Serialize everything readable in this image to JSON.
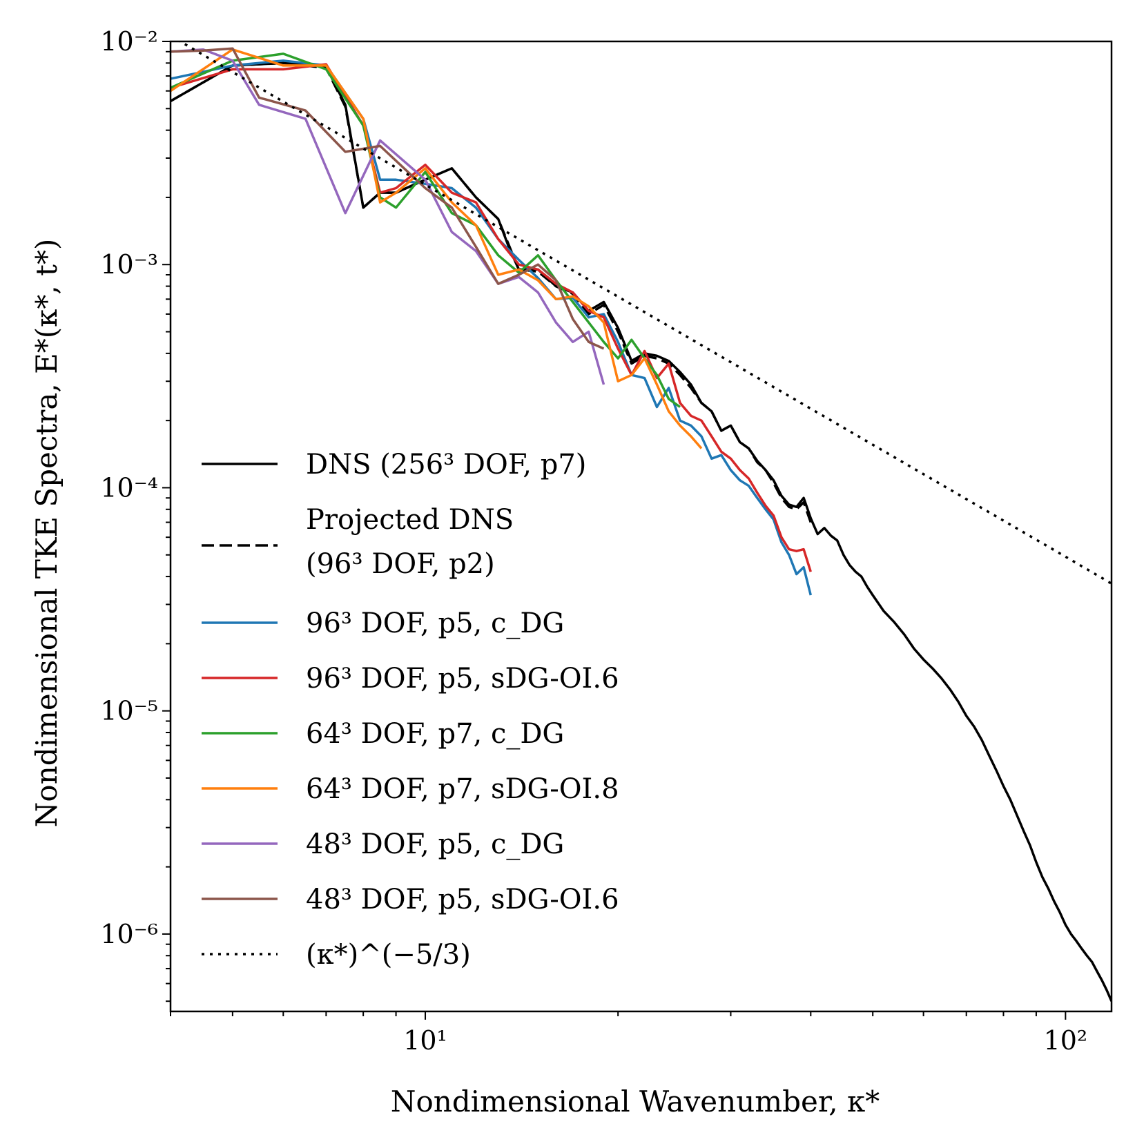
{
  "chart_data": {
    "type": "line",
    "x_scale": "log",
    "y_scale": "log",
    "xlim": [
      4,
      118
    ],
    "ylim": [
      4.5e-07,
      0.01
    ],
    "xlabel": "Nondimensional Wavenumber, κ*",
    "ylabel": "Nondimensional TKE Spectra, E*(κ*, t*)",
    "grid": false,
    "legend_position": "lower-left",
    "x_ticks": [
      {
        "value": 10,
        "label": "10¹"
      },
      {
        "value": 100,
        "label": "10²"
      }
    ],
    "y_ticks": [
      {
        "value": 1e-06,
        "label": "10⁻⁶"
      },
      {
        "value": 1e-05,
        "label": "10⁻⁵"
      },
      {
        "value": 0.0001,
        "label": "10⁻⁴"
      },
      {
        "value": 0.001,
        "label": "10⁻³"
      },
      {
        "value": 0.01,
        "label": "10⁻²"
      }
    ],
    "series": [
      {
        "name": "DNS (256³ DOF, p7)",
        "color": "#000000",
        "style": "solid",
        "x": [
          4,
          5,
          6,
          7,
          7.5,
          8,
          8.5,
          9,
          10,
          11,
          12,
          13,
          13.5,
          14,
          15,
          16,
          17,
          18,
          19,
          20,
          21,
          22,
          23,
          24,
          25,
          26,
          27,
          28,
          29,
          30,
          31,
          32,
          33,
          34,
          35,
          36,
          37,
          38,
          39,
          40,
          41,
          42,
          43,
          44,
          45,
          46,
          47,
          48,
          49,
          50,
          52,
          54,
          56,
          58,
          60,
          62,
          64,
          66,
          68,
          70,
          72,
          74,
          76,
          78,
          80,
          82,
          84,
          86,
          88,
          90,
          92,
          94,
          96,
          98,
          100,
          102,
          104,
          106,
          108,
          110,
          112,
          114,
          116,
          118
        ],
        "y": [
          0.0054,
          0.0078,
          0.008,
          0.0077,
          0.0052,
          0.0018,
          0.0021,
          0.0021,
          0.0024,
          0.0027,
          0.002,
          0.0016,
          0.0012,
          0.00095,
          0.00095,
          0.0008,
          0.00075,
          0.00062,
          0.00068,
          0.00052,
          0.00037,
          0.0004,
          0.00039,
          0.00037,
          0.00033,
          0.00029,
          0.00024,
          0.00022,
          0.00018,
          0.00019,
          0.00016,
          0.00015,
          0.000132,
          0.00012,
          0.000108,
          9.2e-05,
          8.4e-05,
          8.2e-05,
          9e-05,
          7.3e-05,
          6.2e-05,
          6.6e-05,
          6.1e-05,
          5.8e-05,
          5e-05,
          4.5e-05,
          4.2e-05,
          4e-05,
          3.6e-05,
          3.3e-05,
          2.8e-05,
          2.5e-05,
          2.2e-05,
          1.9e-05,
          1.7e-05,
          1.55e-05,
          1.4e-05,
          1.25e-05,
          1.1e-05,
          9.5e-06,
          8.5e-06,
          7.4e-06,
          6.3e-06,
          5.4e-06,
          4.6e-06,
          4e-06,
          3.4e-06,
          2.9e-06,
          2.5e-06,
          2.1e-06,
          1.8e-06,
          1.6e-06,
          1.4e-06,
          1.25e-06,
          1.1e-06,
          1e-06,
          9.3e-07,
          8.6e-07,
          8e-07,
          7.5e-07,
          6.8e-07,
          6.2e-07,
          5.6e-07,
          5e-07
        ]
      },
      {
        "name": "Projected DNS\n(96³ DOF, p2)",
        "color": "#000000",
        "style": "dashed",
        "x": [
          4,
          5,
          6,
          7,
          7.5,
          8,
          8.5,
          9,
          10,
          11,
          12,
          13,
          14,
          15,
          16,
          17,
          18,
          19,
          20,
          21,
          22,
          23,
          24,
          25,
          26,
          27,
          28,
          29,
          30,
          31,
          32,
          33,
          34,
          35,
          36,
          37,
          38,
          39,
          40
        ],
        "y": [
          0.0054,
          0.0078,
          0.008,
          0.0076,
          0.0051,
          0.0018,
          0.0021,
          0.0021,
          0.0024,
          0.0027,
          0.002,
          0.0016,
          0.00095,
          0.00093,
          0.0008,
          0.00074,
          0.0006,
          0.00066,
          0.0005,
          0.00036,
          0.00039,
          0.00038,
          0.00036,
          0.00032,
          0.00028,
          0.00024,
          0.00022,
          0.00018,
          0.00019,
          0.00016,
          0.00015,
          0.00013,
          0.00012,
          0.000105,
          9e-05,
          8.2e-05,
          8e-05,
          8.6e-05,
          7e-05
        ]
      },
      {
        "name": "96³ DOF, p5, c_DG",
        "color": "#1f77b4",
        "style": "solid",
        "x": [
          4,
          5,
          6,
          7,
          8,
          8.5,
          9,
          10,
          11,
          12,
          13,
          14,
          15,
          16,
          17,
          18,
          19,
          20,
          21,
          22,
          23,
          24,
          25,
          26,
          27,
          28,
          29,
          30,
          31,
          32,
          33,
          34,
          35,
          36,
          37,
          38,
          39,
          40
        ],
        "y": [
          0.0068,
          0.0078,
          0.0082,
          0.0078,
          0.0045,
          0.0024,
          0.0024,
          0.0023,
          0.0022,
          0.0018,
          0.0013,
          0.00105,
          0.00087,
          0.0007,
          0.00071,
          0.00058,
          0.0006,
          0.00045,
          0.00032,
          0.00031,
          0.00023,
          0.00028,
          0.0002,
          0.00019,
          0.00017,
          0.000135,
          0.00014,
          0.00012,
          0.000108,
          0.000102,
          9e-05,
          8e-05,
          7.2e-05,
          5.7e-05,
          5e-05,
          4.1e-05,
          4.4e-05,
          3.3e-05
        ]
      },
      {
        "name": "96³ DOF, p5, sDG-OI.6",
        "color": "#d62728",
        "style": "solid",
        "x": [
          4,
          5,
          6,
          7,
          8,
          8.5,
          9,
          10,
          11,
          12,
          13,
          14,
          15,
          16,
          17,
          18,
          19,
          20,
          21,
          22,
          23,
          24,
          25,
          26,
          27,
          28,
          29,
          30,
          31,
          32,
          33,
          34,
          35,
          36,
          37,
          38,
          39,
          40
        ],
        "y": [
          0.0062,
          0.0075,
          0.0075,
          0.0079,
          0.0042,
          0.0021,
          0.0022,
          0.0028,
          0.0021,
          0.0019,
          0.0013,
          0.001,
          0.00095,
          0.00082,
          0.00075,
          0.00062,
          0.00058,
          0.00042,
          0.00032,
          0.00041,
          0.00031,
          0.00036,
          0.00024,
          0.00021,
          0.0002,
          0.00017,
          0.000145,
          0.000135,
          0.00012,
          0.00011,
          9.5e-05,
          8.3e-05,
          7.5e-05,
          6e-05,
          5.3e-05,
          5.2e-05,
          5.3e-05,
          4.2e-05
        ]
      },
      {
        "name": "64³ DOF, p7, c_DG",
        "color": "#2ca02c",
        "style": "solid",
        "x": [
          4,
          5,
          6,
          7,
          8,
          8.5,
          9,
          10,
          11,
          12,
          13,
          14,
          15,
          16,
          17,
          18,
          19,
          20,
          21,
          22,
          23,
          24,
          25
        ],
        "y": [
          0.0062,
          0.0082,
          0.0088,
          0.0075,
          0.0042,
          0.002,
          0.0018,
          0.0026,
          0.0017,
          0.0015,
          0.0011,
          0.00092,
          0.0011,
          0.00085,
          0.00068,
          0.00055,
          0.00045,
          0.00038,
          0.00046,
          0.00038,
          0.00032,
          0.00025,
          0.00023
        ]
      },
      {
        "name": "64³ DOF, p7, sDG-OI.8",
        "color": "#ff7f0e",
        "style": "solid",
        "x": [
          4,
          5,
          6,
          7,
          8,
          8.5,
          9,
          10,
          11,
          12,
          13,
          14,
          15,
          16,
          17,
          18,
          19,
          20,
          21,
          22,
          23,
          24,
          25,
          26,
          27
        ],
        "y": [
          0.006,
          0.0092,
          0.0078,
          0.0078,
          0.0045,
          0.0019,
          0.0021,
          0.0027,
          0.0019,
          0.0015,
          0.0009,
          0.00095,
          0.00085,
          0.0007,
          0.00072,
          0.00065,
          0.00055,
          0.0003,
          0.00032,
          0.00038,
          0.00029,
          0.00022,
          0.00019,
          0.00017,
          0.00015
        ]
      },
      {
        "name": "48³ DOF, p5, c_DG",
        "color": "#9467bd",
        "style": "solid",
        "x": [
          4,
          4.5,
          5,
          5.5,
          6.5,
          7.5,
          8.5,
          10,
          11,
          12,
          13,
          14,
          15,
          16,
          17,
          18,
          19
        ],
        "y": [
          0.009,
          0.0092,
          0.0082,
          0.0052,
          0.0045,
          0.0017,
          0.0036,
          0.0024,
          0.0014,
          0.00115,
          0.00082,
          0.00088,
          0.00075,
          0.00055,
          0.00045,
          0.0005,
          0.00029
        ]
      },
      {
        "name": "48³ DOF, p5, sDG-OI.6",
        "color": "#8c564b",
        "style": "solid",
        "x": [
          4,
          4.5,
          5,
          5.5,
          6.5,
          7.5,
          8.5,
          10,
          11,
          12,
          13,
          14,
          15,
          16,
          17,
          18,
          19
        ],
        "y": [
          0.009,
          0.0091,
          0.0093,
          0.0056,
          0.0049,
          0.0032,
          0.0034,
          0.0022,
          0.0018,
          0.0012,
          0.00082,
          0.0009,
          0.001,
          0.00085,
          0.00057,
          0.00045,
          0.00042
        ]
      },
      {
        "name": "(κ*)^(-5/3)",
        "color": "#000000",
        "style": "dotted",
        "x": [
          4,
          10,
          100,
          118
        ],
        "y": [
          0.0106,
          0.00228,
          4.91e-05,
          3.72e-05
        ]
      }
    ],
    "legend": [
      {
        "label": "DNS (256³ DOF, p7)",
        "color": "#000000",
        "style": "solid"
      },
      {
        "label": "Projected DNS",
        "label2": "(96³ DOF, p2)",
        "color": "#000000",
        "style": "dashed"
      },
      {
        "label": "96³ DOF, p5, c_DG",
        "color": "#1f77b4",
        "style": "solid"
      },
      {
        "label": "96³ DOF, p5, sDG-OI.6",
        "color": "#d62728",
        "style": "solid"
      },
      {
        "label": "64³ DOF, p7, c_DG",
        "color": "#2ca02c",
        "style": "solid"
      },
      {
        "label": "64³ DOF, p7, sDG-OI.8",
        "color": "#ff7f0e",
        "style": "solid"
      },
      {
        "label": "48³ DOF, p5, c_DG",
        "color": "#9467bd",
        "style": "solid"
      },
      {
        "label": "48³ DOF, p5, sDG-OI.6",
        "color": "#8c564b",
        "style": "solid"
      },
      {
        "label": "(κ*)^(−5/3)",
        "color": "#000000",
        "style": "dotted"
      }
    ]
  }
}
